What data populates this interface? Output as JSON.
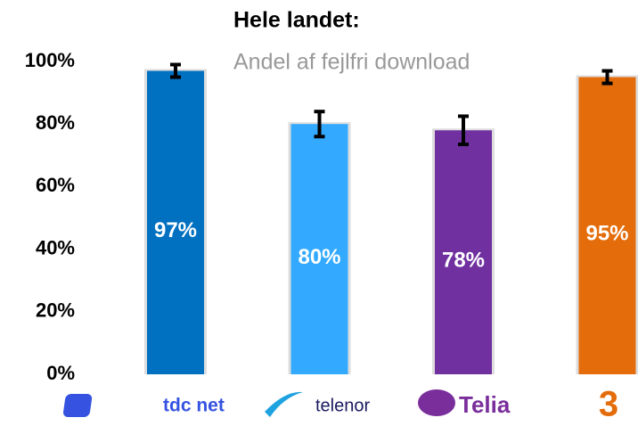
{
  "chart_data": {
    "type": "bar",
    "title": "Hele landet:",
    "subtitle": "Andel af fejlfri download",
    "categories": [
      "tdc net",
      "telenor",
      "Telia",
      "3"
    ],
    "values": [
      97,
      80,
      78,
      95
    ],
    "value_labels": [
      "97%",
      "80%",
      "78%",
      "95%"
    ],
    "errors": [
      2,
      4,
      4.5,
      2
    ],
    "colors": [
      "#0070c0",
      "#33aaff",
      "#7030a0",
      "#e46c0a"
    ],
    "ylim": [
      0,
      100
    ],
    "yticks": [
      {
        "value": 0,
        "label": "0%"
      },
      {
        "value": 20,
        "label": "20%"
      },
      {
        "value": 40,
        "label": "40%"
      },
      {
        "value": 60,
        "label": "60%"
      },
      {
        "value": 80,
        "label": "80%"
      },
      {
        "value": 100,
        "label": "100%"
      }
    ],
    "grid": false
  }
}
